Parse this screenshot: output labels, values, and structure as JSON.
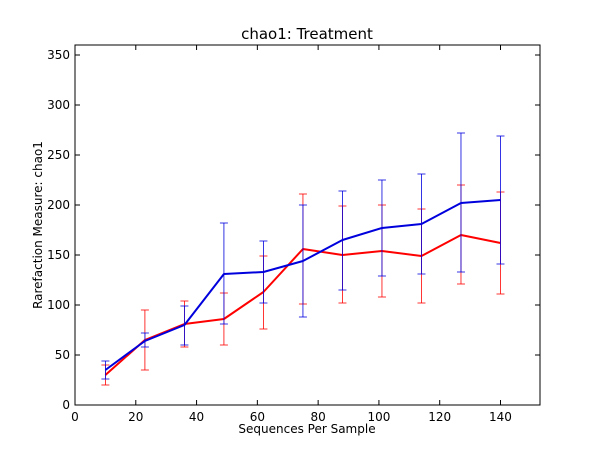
{
  "chart_data": {
    "type": "line",
    "title": "chao1: Treatment",
    "xlabel": "Sequences Per Sample",
    "ylabel": "Rarefaction Measure: chao1",
    "xlim": [
      0,
      153
    ],
    "ylim": [
      0,
      360
    ],
    "xticks": [
      0,
      20,
      40,
      60,
      80,
      100,
      120,
      140
    ],
    "yticks": [
      0,
      50,
      100,
      150,
      200,
      250,
      300,
      350
    ],
    "grid": false,
    "series": [
      {
        "color": "#ff0000",
        "points": [
          {
            "x": 10,
            "y": 30,
            "lo": 20,
            "hi": 40
          },
          {
            "x": 23,
            "y": 65,
            "lo": 35,
            "hi": 95
          },
          {
            "x": 36,
            "y": 81,
            "lo": 58,
            "hi": 104
          },
          {
            "x": 49,
            "y": 86,
            "lo": 60,
            "hi": 112
          },
          {
            "x": 62,
            "y": 113,
            "lo": 76,
            "hi": 149
          },
          {
            "x": 75,
            "y": 156,
            "lo": 101,
            "hi": 211
          },
          {
            "x": 88,
            "y": 150,
            "lo": 102,
            "hi": 199
          },
          {
            "x": 101,
            "y": 154,
            "lo": 108,
            "hi": 200
          },
          {
            "x": 114,
            "y": 149,
            "lo": 102,
            "hi": 196
          },
          {
            "x": 127,
            "y": 170,
            "lo": 121,
            "hi": 220
          },
          {
            "x": 140,
            "y": 162,
            "lo": 111,
            "hi": 213
          }
        ]
      },
      {
        "color": "#0000dd",
        "points": [
          {
            "x": 10,
            "y": 35,
            "lo": 26,
            "hi": 44
          },
          {
            "x": 23,
            "y": 64,
            "lo": 58,
            "hi": 72
          },
          {
            "x": 36,
            "y": 80,
            "lo": 60,
            "hi": 99
          },
          {
            "x": 49,
            "y": 131,
            "lo": 81,
            "hi": 182
          },
          {
            "x": 62,
            "y": 133,
            "lo": 102,
            "hi": 164
          },
          {
            "x": 75,
            "y": 144,
            "lo": 88,
            "hi": 200
          },
          {
            "x": 88,
            "y": 165,
            "lo": 115,
            "hi": 214
          },
          {
            "x": 101,
            "y": 177,
            "lo": 129,
            "hi": 225
          },
          {
            "x": 114,
            "y": 181,
            "lo": 131,
            "hi": 231
          },
          {
            "x": 127,
            "y": 202,
            "lo": 133,
            "hi": 272
          },
          {
            "x": 140,
            "y": 205,
            "lo": 141,
            "hi": 269
          }
        ]
      }
    ]
  }
}
